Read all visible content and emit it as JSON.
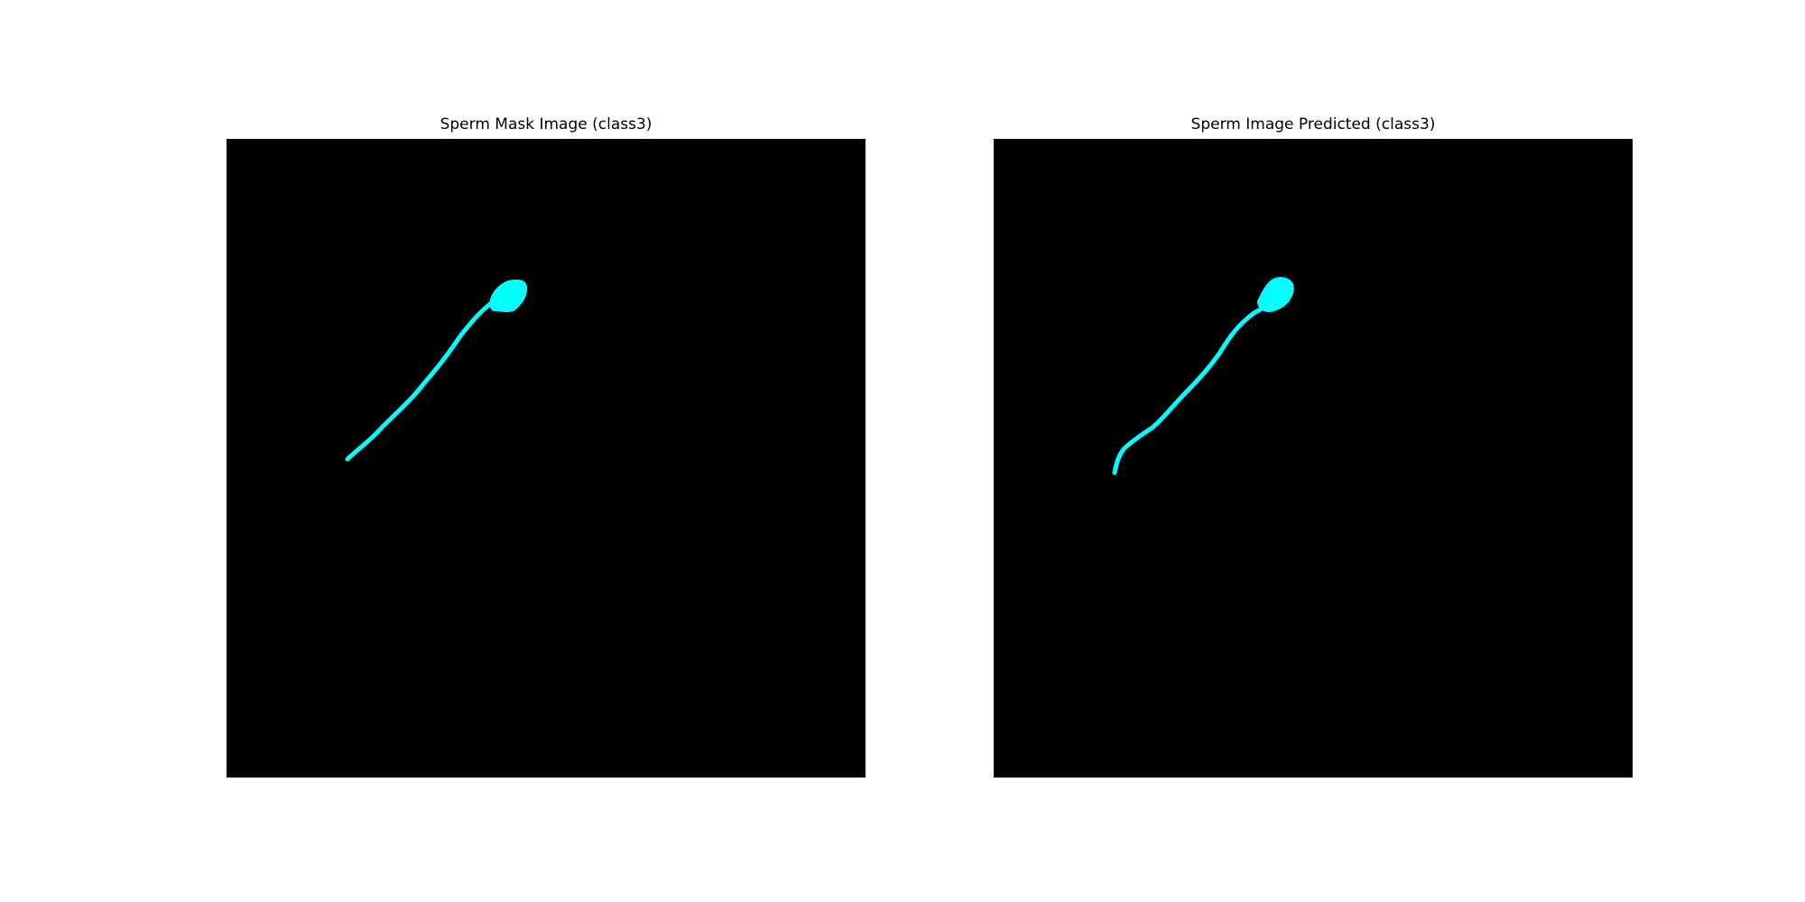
{
  "panels": [
    {
      "title": "Sperm Mask Image (class3)"
    },
    {
      "title": "Sperm Image Predicted (class3)"
    }
  ],
  "colors": {
    "background": "#ffffff",
    "image_background": "#000000",
    "mask": "#00ffff"
  }
}
